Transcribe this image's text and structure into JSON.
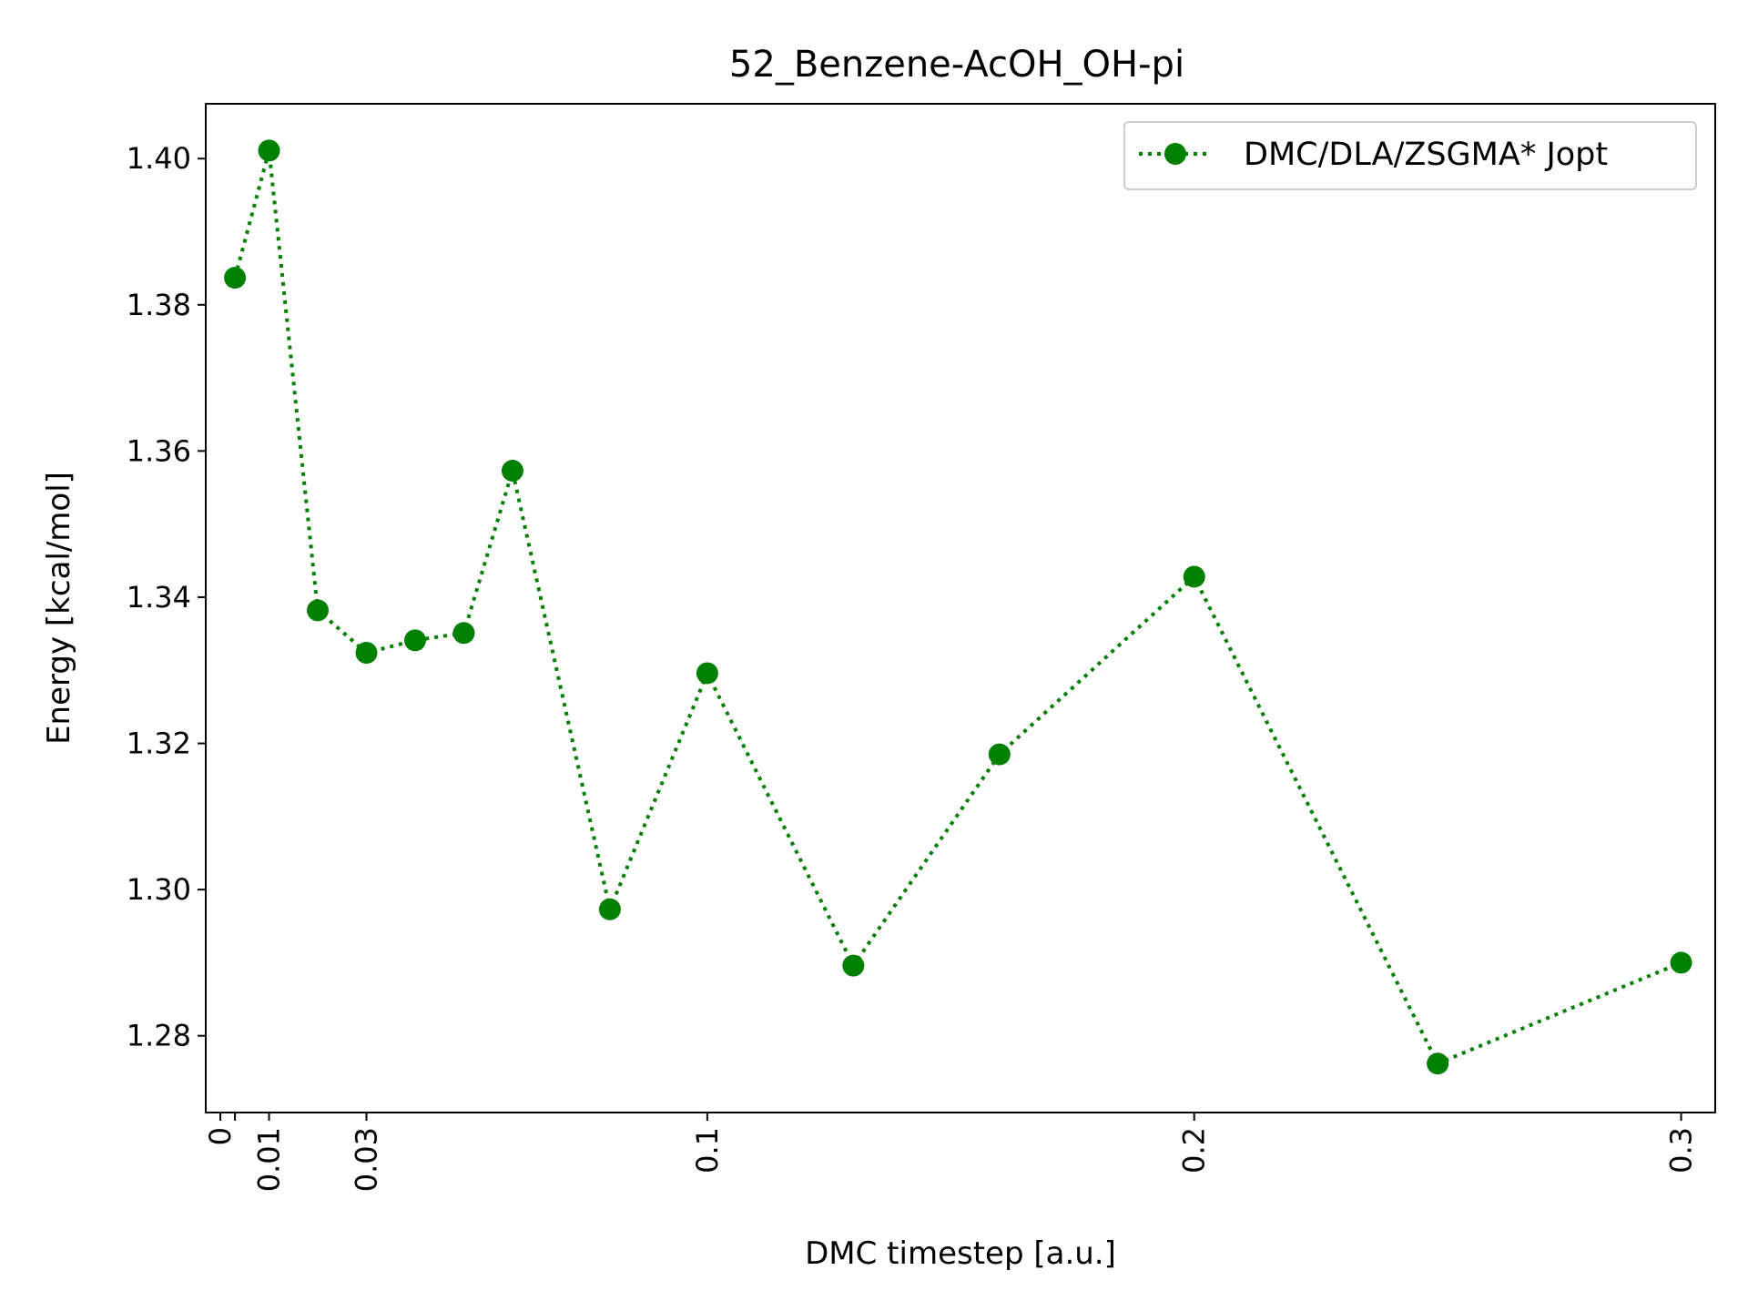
{
  "chart_data": {
    "type": "line",
    "title": "52_Benzene-AcOH_OH-pi",
    "xlabel": "DMC timestep [a.u.]",
    "ylabel": "Energy [kcal/mol]",
    "xlim": [
      -0.003,
      0.307
    ],
    "ylim": [
      1.2695,
      1.4075
    ],
    "x_ticks": [
      0,
      0.003,
      0.01,
      0.03,
      0.1,
      0.2,
      0.3
    ],
    "x_tick_labels": [
      "0",
      "",
      "0.01",
      "0.03",
      "0.1",
      "0.2",
      "0.3"
    ],
    "y_ticks": [
      1.28,
      1.3,
      1.32,
      1.34,
      1.36,
      1.38,
      1.4
    ],
    "y_tick_labels": [
      "1.28",
      "1.30",
      "1.32",
      "1.34",
      "1.36",
      "1.38",
      "1.40"
    ],
    "grid": false,
    "legend_position": "top-right",
    "series": [
      {
        "name": "DMC/DLA/ZSGMA* Jopt",
        "color": "#008000",
        "line_style": "dotted",
        "marker": "circle",
        "x": [
          0.003,
          0.01,
          0.02,
          0.03,
          0.04,
          0.05,
          0.06,
          0.08,
          0.1,
          0.13,
          0.16,
          0.2,
          0.25,
          0.3
        ],
        "y": [
          1.3837,
          1.4011,
          1.3382,
          1.3324,
          1.3341,
          1.3351,
          1.3573,
          1.2973,
          1.3296,
          1.2896,
          1.3185,
          1.3428,
          1.2762,
          1.29
        ]
      }
    ]
  }
}
